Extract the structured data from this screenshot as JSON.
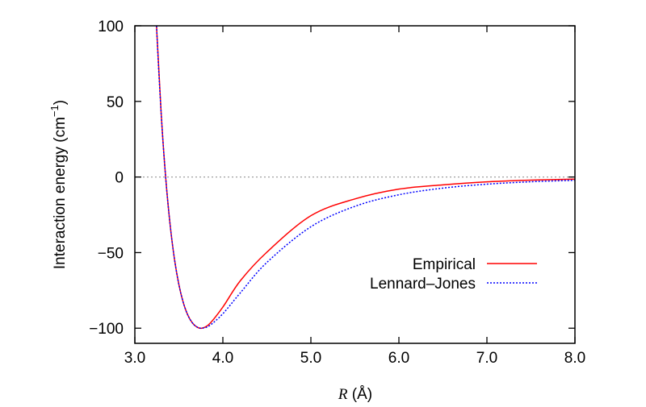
{
  "chart_data": {
    "type": "line",
    "title": "",
    "xlabel_var": "R",
    "xlabel_unit": "(Å)",
    "ylabel": "Interaction energy (cm",
    "ylabel_sup": "−1",
    "ylabel_close": ")",
    "xlim": [
      3.0,
      8.0
    ],
    "ylim": [
      -110,
      100
    ],
    "xticks": [
      3.0,
      4.0,
      5.0,
      6.0,
      7.0,
      8.0
    ],
    "xtick_labels": [
      "3.0",
      "4.0",
      "5.0",
      "6.0",
      "7.0",
      "8.0"
    ],
    "yticks": [
      100,
      50,
      0,
      -50,
      -100
    ],
    "ytick_labels": [
      "100",
      "50",
      "0",
      "−50",
      "−100"
    ],
    "zero_line": true,
    "grid": false,
    "legend_position": "lower-right",
    "series": [
      {
        "name": "Empirical",
        "color": "#ff0000",
        "style": "solid",
        "x": [
          3.2,
          3.25,
          3.3,
          3.35,
          3.4,
          3.45,
          3.5,
          3.55,
          3.6,
          3.65,
          3.7,
          3.76,
          3.85,
          4.0,
          4.2,
          4.5,
          5.0,
          5.5,
          6.0,
          6.5,
          7.0,
          7.5,
          8.0
        ],
        "y": [
          166,
          95.4,
          41.1,
          -0.2,
          -31.2,
          -54.3,
          -71.1,
          -83.0,
          -91.1,
          -96.2,
          -99.0,
          -100,
          -97.0,
          -86.0,
          -68.5,
          -49.7,
          -25.6,
          -14.5,
          -8.0,
          -5.2,
          -3.2,
          -2.1,
          -1.4
        ]
      },
      {
        "name": "Lennard–Jones",
        "color": "#0000ff",
        "style": "dotted",
        "x": [
          3.2,
          3.25,
          3.3,
          3.35,
          3.4,
          3.45,
          3.5,
          3.55,
          3.6,
          3.65,
          3.7,
          3.76,
          3.85,
          4.0,
          4.2,
          4.5,
          5.0,
          5.5,
          6.0,
          6.5,
          7.0,
          7.5,
          8.0
        ],
        "y": [
          166,
          95.4,
          41.1,
          -0.2,
          -31.2,
          -54.3,
          -71.1,
          -83.0,
          -91.1,
          -96.2,
          -99.0,
          -100,
          -98.2,
          -90.4,
          -76.5,
          -56.5,
          -32.9,
          -19.4,
          -11.75,
          -7.35,
          -4.74,
          -3.15,
          -2.15
        ]
      }
    ]
  }
}
